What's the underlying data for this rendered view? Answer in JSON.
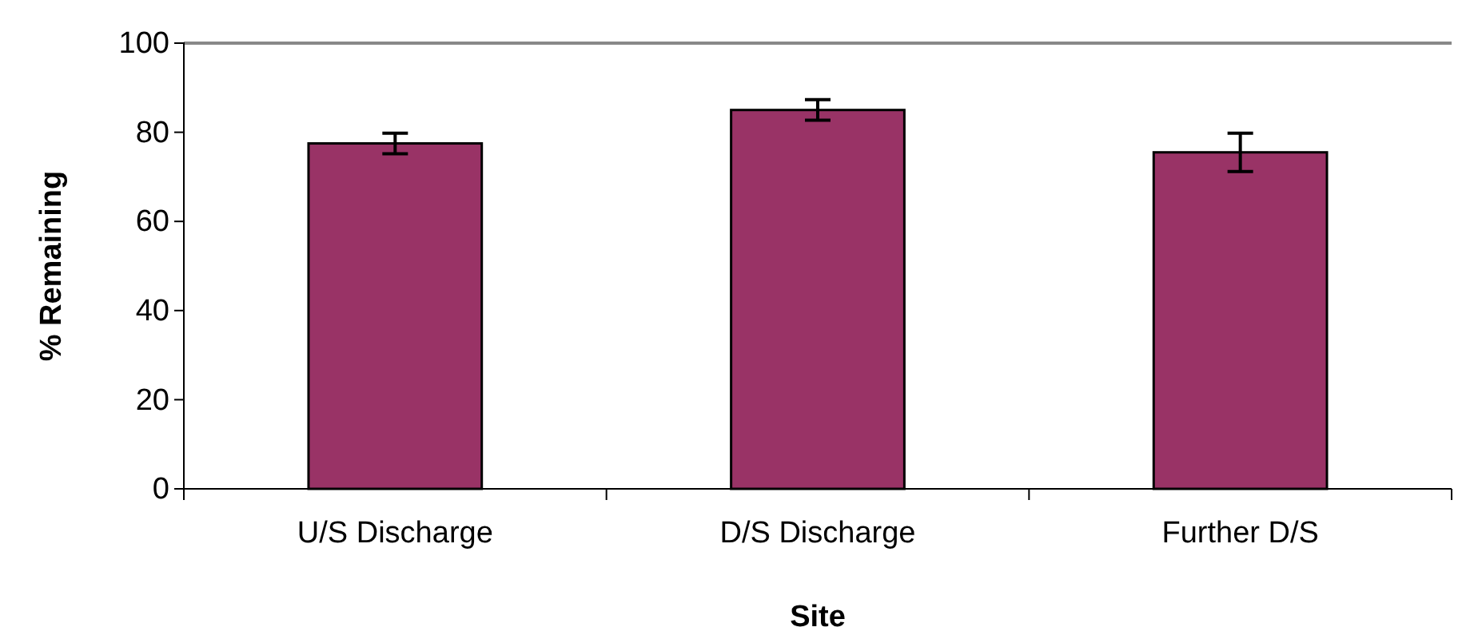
{
  "chart_data": {
    "type": "bar",
    "xlabel": "Site",
    "ylabel": "% Remaining",
    "categories": [
      "U/S Discharge",
      "D/S Discharge",
      "Further D/S"
    ],
    "values": [
      77.5,
      85,
      75.5
    ],
    "errors": [
      2.3,
      2.3,
      4.3
    ],
    "color": "#993366",
    "ylim": [
      0,
      100
    ],
    "yticks": [
      0,
      20,
      40,
      60,
      80,
      100
    ],
    "grid": false
  }
}
